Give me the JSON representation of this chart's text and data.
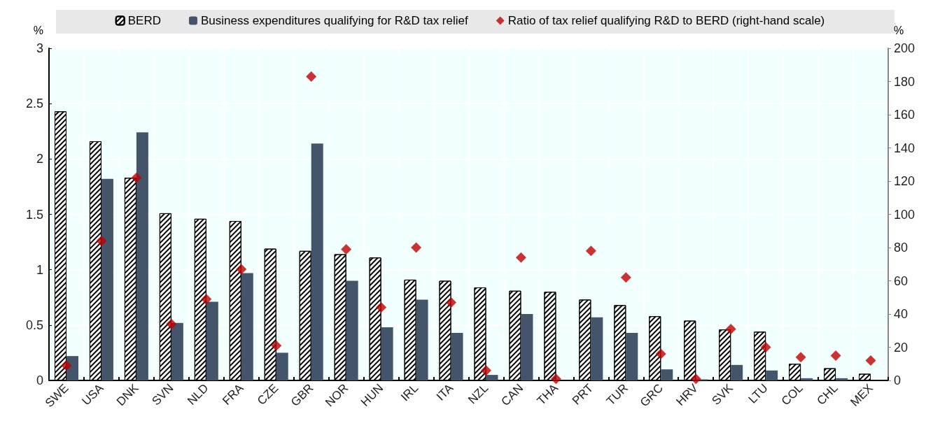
{
  "chart_data": {
    "type": "bar",
    "ylabel": "%",
    "y2label": "%",
    "categories": [
      "SWE",
      "USA",
      "DNK",
      "SVN",
      "NLD",
      "FRA",
      "CZE",
      "GBR",
      "NOR",
      "HUN",
      "IRL",
      "ITA",
      "NZL",
      "CAN",
      "THA",
      "PRT",
      "TUR",
      "GRC",
      "HRV",
      "SVK",
      "LTU",
      "COL",
      "CHL",
      "MEX"
    ],
    "series": [
      {
        "name": "BERD",
        "color": "#ffffff",
        "values": [
          2.43,
          2.16,
          1.83,
          1.51,
          1.46,
          1.44,
          1.19,
          1.17,
          1.14,
          1.11,
          0.91,
          0.9,
          0.84,
          0.81,
          0.8,
          0.73,
          0.68,
          0.58,
          0.54,
          0.46,
          0.44,
          0.15,
          0.11,
          0.06
        ]
      },
      {
        "name": "Business expenditures qualifying for R&D tax relief",
        "color": "#44546a",
        "values": [
          0.22,
          1.82,
          2.24,
          0.52,
          0.71,
          0.97,
          0.25,
          2.14,
          0.9,
          0.48,
          0.73,
          0.43,
          0.05,
          0.6,
          null,
          0.57,
          0.43,
          0.1,
          0.01,
          0.14,
          0.09,
          0.02,
          0.02,
          null
        ]
      },
      {
        "name": "Ratio of tax relief qualifying R&D to BERD (right-hand scale)",
        "type": "scatter",
        "axis": "y2",
        "marker": "diamond",
        "color": "#c00000",
        "values": [
          9,
          84,
          122,
          34,
          49,
          67,
          21,
          183,
          79,
          44,
          80,
          47,
          6,
          74,
          1,
          78,
          62,
          16,
          1,
          31,
          20,
          14,
          15,
          12
        ]
      }
    ],
    "ylim": [
      0,
      3
    ],
    "yticks": [
      0,
      0.5,
      1,
      1.5,
      2,
      2.5,
      3
    ],
    "y2lim": [
      0,
      200
    ],
    "y2ticks": [
      0,
      20,
      40,
      60,
      80,
      100,
      120,
      140,
      160,
      180,
      200
    ],
    "grid": true,
    "legend": "top"
  }
}
